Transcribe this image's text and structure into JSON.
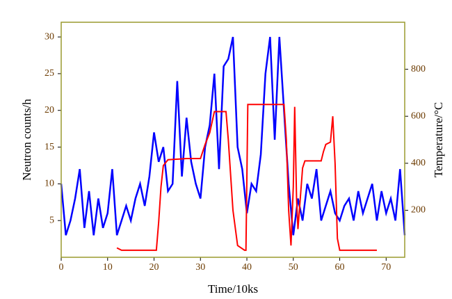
{
  "chart_data": {
    "type": "line",
    "xlabel": "Time/10ks",
    "ylabel": "Neutron counts/h",
    "y2label": "Temperature/°C",
    "xlim": [
      0,
      74
    ],
    "ylim": [
      0,
      32
    ],
    "y2lim": [
      0,
      1000
    ],
    "xticks": [
      0,
      10,
      20,
      30,
      40,
      50,
      60,
      70
    ],
    "yticks": [
      5,
      10,
      15,
      20,
      25,
      30
    ],
    "y2ticks": [
      200,
      400,
      600,
      800
    ],
    "frame_color": "#9a9a2e",
    "tick_label_color": "#6b3a00",
    "series": [
      {
        "color": "#0000ff",
        "axis": "y",
        "x": [
          0,
          1,
          2,
          3,
          4,
          5,
          6,
          7,
          8,
          9,
          10,
          11,
          12,
          13,
          14,
          15,
          16,
          17,
          18,
          19,
          20,
          21,
          22,
          23,
          24,
          25,
          26,
          27,
          28,
          29,
          30,
          31,
          32,
          33,
          34,
          35,
          36,
          37,
          38,
          39,
          40,
          41,
          42,
          43,
          44,
          45,
          46,
          47,
          48,
          49,
          50,
          51,
          52,
          53,
          54,
          55,
          56,
          57,
          58,
          59,
          60,
          61,
          62,
          63,
          64,
          65,
          66,
          67,
          68,
          69,
          70,
          71,
          72,
          73,
          74
        ],
        "values": [
          10,
          3,
          5,
          8,
          12,
          4,
          9,
          3,
          8,
          4,
          6,
          12,
          3,
          5,
          7,
          5,
          8,
          10,
          7,
          11,
          17,
          13,
          15,
          9,
          10,
          24,
          11,
          19,
          13,
          10,
          8,
          15,
          18,
          25,
          12,
          26,
          27,
          30,
          15,
          12,
          6,
          10,
          9,
          14,
          25,
          30,
          16,
          30,
          20,
          10,
          3,
          8,
          5,
          10,
          8,
          12,
          5,
          7,
          9,
          6,
          5,
          7,
          8,
          5,
          9,
          6,
          8,
          10,
          5,
          9,
          6,
          8,
          5,
          12,
          3
        ]
      },
      {
        "color": "#ff0000",
        "axis": "y2",
        "x": [
          12,
          13,
          20.5,
          21,
          21.5,
          22,
          23,
          27,
          30,
          31,
          32,
          33,
          35.5,
          36,
          37,
          38,
          39.5,
          39.8,
          40.2,
          48,
          48.5,
          49,
          49.5,
          50,
          50.3,
          50.7,
          51,
          51.5,
          52,
          52.5,
          54,
          56,
          56.5,
          57,
          58,
          58.5,
          59,
          59.5,
          60,
          68
        ],
        "values": [
          40,
          30,
          30,
          150,
          300,
          390,
          415,
          420,
          420,
          480,
          530,
          620,
          620,
          500,
          200,
          50,
          30,
          30,
          650,
          650,
          500,
          200,
          50,
          300,
          640,
          250,
          120,
          250,
          380,
          410,
          410,
          410,
          450,
          480,
          490,
          600,
          400,
          80,
          30,
          30
        ]
      }
    ]
  }
}
